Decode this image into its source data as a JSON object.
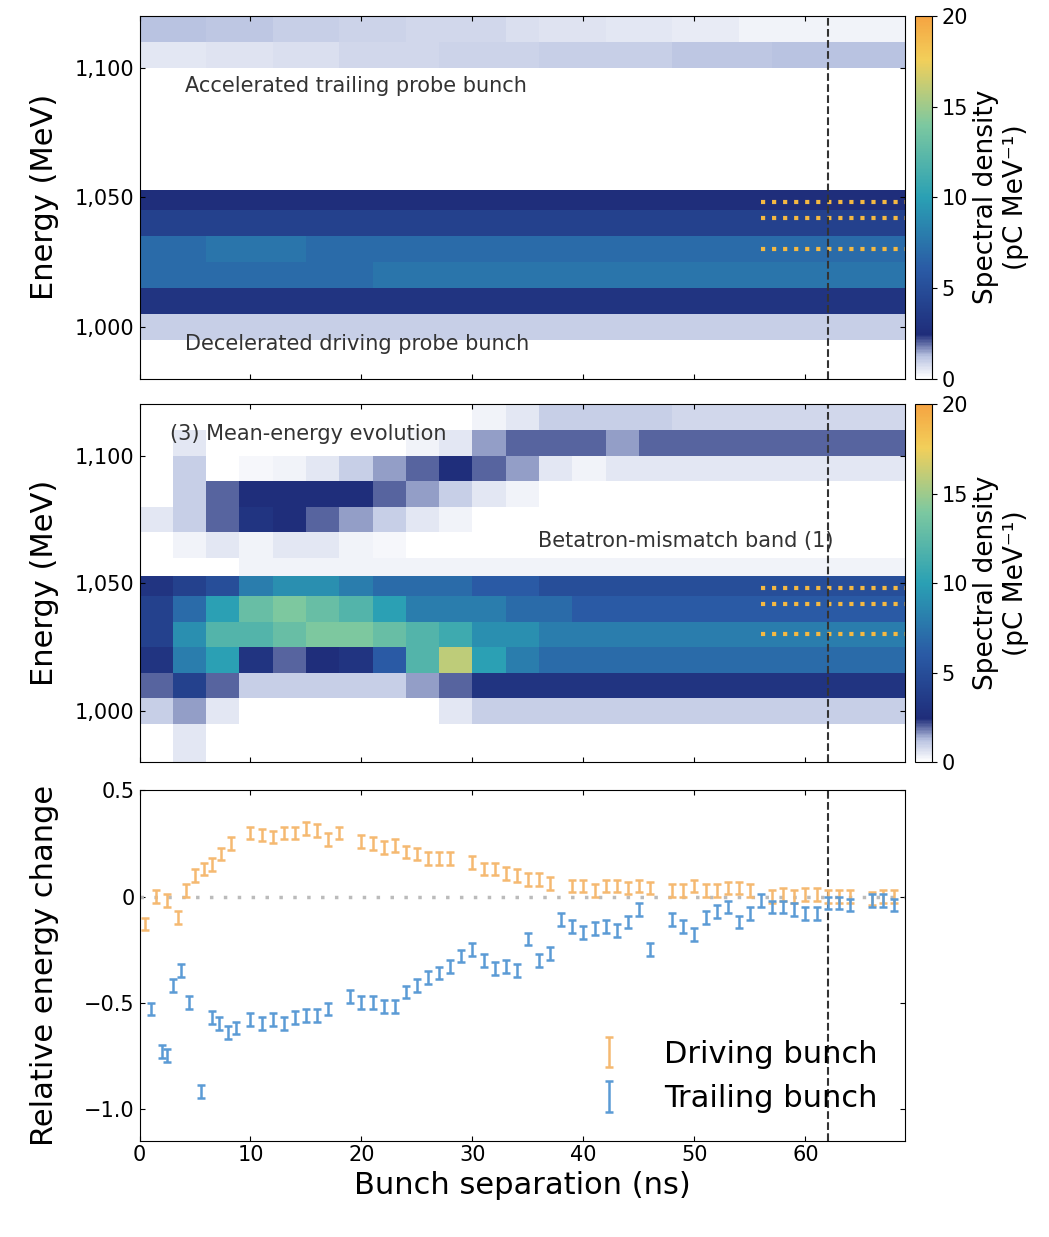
{
  "chart_data": [
    {
      "type": "heatmap",
      "x_edges": [
        0,
        3,
        6,
        9,
        12,
        15,
        18,
        21,
        24,
        27,
        30,
        33,
        36,
        39,
        42,
        45,
        48,
        51,
        54,
        57,
        60,
        63,
        66,
        69
      ],
      "y_edges": [
        980,
        995,
        1005,
        1015,
        1025,
        1035,
        1045,
        1053,
        1060,
        1070,
        1080,
        1090,
        1100,
        1110,
        1120
      ],
      "cells": [
        [
          0,
          1,
          3,
          7,
          7,
          4,
          2.5,
          0,
          0,
          0,
          0,
          0,
          0.5,
          1.2
        ],
        [
          0,
          1,
          3,
          7,
          7,
          4,
          2.5,
          0,
          0,
          0,
          0,
          0,
          0.5,
          1.2
        ],
        [
          0,
          1,
          3,
          7,
          7.5,
          4,
          2.5,
          0,
          0,
          0,
          0,
          0,
          0.6,
          1.1
        ],
        [
          0,
          1,
          3,
          7,
          7.5,
          4,
          2.5,
          0,
          0,
          0,
          0,
          0,
          0.6,
          1.1
        ],
        [
          0,
          1,
          3,
          7,
          7.5,
          4,
          2.5,
          0,
          0,
          0,
          0,
          0,
          0.7,
          1.0
        ],
        [
          0,
          1,
          3,
          7,
          7,
          4,
          2.5,
          0,
          0,
          0,
          0,
          0,
          0.7,
          1.0
        ],
        [
          0,
          1,
          3,
          7,
          7,
          4,
          2.5,
          0,
          0,
          0,
          0,
          0,
          0.8,
          0.9
        ],
        [
          0,
          1,
          3,
          7.5,
          7,
          4,
          2.5,
          0,
          0,
          0,
          0,
          0,
          0.8,
          0.9
        ],
        [
          0,
          1,
          3,
          7.5,
          7,
          4,
          2.5,
          0,
          0,
          0,
          0,
          0,
          0.8,
          0.8
        ],
        [
          0,
          1,
          3,
          7.5,
          7,
          4,
          2.5,
          0,
          0,
          0,
          0,
          0,
          0.9,
          0.8
        ],
        [
          0,
          1,
          3,
          7.5,
          7,
          4,
          2.5,
          0,
          0,
          0,
          0,
          0,
          0.9,
          0.8
        ],
        [
          0,
          1,
          3,
          7.5,
          7,
          4,
          2.5,
          0,
          0,
          0,
          0,
          0,
          0.9,
          0.7
        ],
        [
          0,
          1,
          3,
          7.5,
          7,
          4,
          2.5,
          0,
          0,
          0,
          0,
          0,
          1.0,
          0.6
        ],
        [
          0,
          1,
          3,
          7.5,
          7,
          4,
          2.5,
          0,
          0,
          0,
          0,
          0,
          1.0,
          0.6
        ],
        [
          0,
          1,
          3,
          7.5,
          7,
          4,
          2.5,
          0,
          0,
          0,
          0,
          0,
          1.0,
          0.5
        ],
        [
          0,
          1,
          3,
          7.5,
          7,
          4,
          2.5,
          0,
          0,
          0,
          0,
          0,
          1.0,
          0.5
        ],
        [
          0,
          1,
          3,
          7.5,
          7,
          4,
          2.5,
          0,
          0,
          0,
          0,
          0,
          1.1,
          0.4
        ],
        [
          0,
          1,
          3,
          7.5,
          7,
          4,
          2.5,
          0,
          0,
          0,
          0,
          0,
          1.1,
          0.4
        ],
        [
          0,
          1,
          3,
          7.5,
          7,
          4,
          2.5,
          0,
          0,
          0,
          0,
          0,
          1.1,
          0.3
        ],
        [
          0,
          1,
          3,
          7.5,
          7,
          4,
          2.5,
          0,
          0,
          0,
          0,
          0,
          1.2,
          0.3
        ],
        [
          0,
          1,
          3,
          7.5,
          7,
          4,
          2.5,
          0,
          0,
          0,
          0,
          0,
          1.2,
          0.3
        ],
        [
          0,
          1,
          3,
          7.5,
          7,
          4,
          2.5,
          0,
          0,
          0,
          0,
          0,
          1.2,
          0.3
        ],
        [
          0,
          1,
          3,
          7.5,
          7,
          4,
          2.5,
          0,
          0,
          0,
          0,
          0,
          1.2,
          0.3
        ]
      ],
      "xlim": [
        0,
        69
      ],
      "xticks": [
        0,
        10,
        20,
        30,
        40,
        50,
        60
      ],
      "ylim": [
        980,
        1120
      ],
      "yticks": [
        {
          "value": 1000,
          "label": "1,000"
        },
        {
          "value": 1050,
          "label": "1,050"
        },
        {
          "value": 1100,
          "label": "1,100"
        }
      ],
      "ylabel": "Energy (MeV)",
      "tick_labels": "y",
      "annotations": [
        "Accelerated trailing probe bunch",
        "Decelerated driving probe bunch"
      ],
      "dotted_levels": {
        "x": [
          56,
          69
        ],
        "y": [
          1030,
          1042,
          1048
        ],
        "color": "#f5b942"
      },
      "vline": 62,
      "colorbar": {
        "label": "Spectral density\n(pC MeV⁻¹)",
        "range": [
          0,
          20
        ],
        "ticks": [
          0,
          5,
          10,
          15,
          20
        ]
      }
    },
    {
      "type": "heatmap",
      "x_edges": [
        0,
        3,
        6,
        9,
        12,
        15,
        18,
        21,
        24,
        27,
        30,
        33,
        36,
        39,
        42,
        45,
        48,
        51,
        54,
        57,
        60,
        63,
        66,
        69
      ],
      "y_edges": [
        980,
        995,
        1005,
        1015,
        1025,
        1035,
        1045,
        1053,
        1060,
        1070,
        1080,
        1090,
        1100,
        1110,
        1120
      ],
      "cells": [
        [
          0,
          1,
          2,
          3,
          4,
          4,
          3,
          0,
          0,
          0.5,
          0,
          0,
          0,
          0
        ],
        [
          0.5,
          1.5,
          4,
          8,
          9,
          7,
          4,
          0,
          0.3,
          1,
          1,
          1,
          0.5,
          0
        ],
        [
          0,
          0.5,
          2,
          10,
          12,
          10,
          5,
          0,
          0.5,
          2,
          2,
          0,
          0,
          0
        ],
        [
          0,
          0,
          1,
          3,
          12,
          13,
          8,
          0.3,
          0.3,
          3,
          2.5,
          0.2,
          0,
          0
        ],
        [
          0,
          0,
          1,
          2,
          13,
          14,
          9,
          0.3,
          0.5,
          2.5,
          2.5,
          0.3,
          0,
          0
        ],
        [
          0,
          0,
          1,
          2.5,
          14,
          13,
          9,
          0.3,
          0.5,
          2,
          2.5,
          0.5,
          0,
          0
        ],
        [
          0,
          0,
          1,
          3,
          14,
          12,
          8,
          0.3,
          0.3,
          1.5,
          2.5,
          1,
          0,
          0
        ],
        [
          0,
          0,
          1,
          6,
          13,
          10,
          7,
          0.3,
          0.2,
          1,
          2,
          1.5,
          0,
          0
        ],
        [
          0,
          0,
          1.5,
          12,
          12,
          8,
          7,
          0.3,
          0,
          0.5,
          1.5,
          2,
          0.3,
          0
        ],
        [
          0,
          0.5,
          2,
          16,
          11,
          8,
          7,
          0.3,
          0,
          0.3,
          1,
          2.5,
          0.5,
          0
        ],
        [
          0,
          1,
          3,
          10,
          9,
          8,
          6,
          0.3,
          0,
          0,
          0.5,
          2,
          1.5,
          0.3
        ],
        [
          0,
          1,
          3,
          8,
          9,
          7,
          6,
          0.3,
          0,
          0,
          0.3,
          1.5,
          2,
          0.5
        ],
        [
          0,
          1,
          3,
          7,
          8,
          7,
          5,
          0.3,
          0,
          0,
          0,
          0.5,
          2,
          1
        ],
        [
          0,
          1,
          3,
          7,
          8,
          6,
          5,
          0.3,
          0,
          0,
          0,
          0.3,
          2,
          1
        ],
        [
          0,
          1,
          3,
          7,
          8,
          6,
          5,
          0.3,
          0,
          0,
          0,
          0.5,
          1.5,
          1
        ],
        [
          0,
          1,
          3,
          7,
          8,
          6,
          5,
          0.3,
          0,
          0,
          0,
          0.5,
          2,
          1
        ],
        [
          0,
          1,
          3,
          7,
          8,
          6,
          5,
          0.3,
          0,
          0,
          0,
          0.5,
          2,
          0.8
        ],
        [
          0,
          1,
          3,
          7,
          8,
          6,
          5,
          0.3,
          0,
          0,
          0,
          0.5,
          2,
          0.8
        ],
        [
          0,
          1,
          3,
          7,
          8,
          6,
          5,
          0.3,
          0,
          0,
          0,
          0.5,
          2,
          0.8
        ],
        [
          0,
          1,
          3,
          7,
          8,
          6,
          5,
          0.3,
          0,
          0,
          0,
          0.5,
          2,
          0.8
        ],
        [
          0,
          1,
          3,
          7,
          8,
          6,
          5,
          0.3,
          0,
          0,
          0,
          0.5,
          2,
          0.8
        ],
        [
          0,
          1,
          3,
          7,
          8,
          6,
          5,
          0.3,
          0,
          0,
          0,
          0.5,
          2,
          0.8
        ],
        [
          0,
          1,
          3,
          7,
          8,
          6,
          5,
          0.3,
          0,
          0,
          0,
          0.5,
          2,
          0.8
        ]
      ],
      "xlim": [
        0,
        69
      ],
      "xticks": [
        0,
        10,
        20,
        30,
        40,
        50,
        60
      ],
      "ylim": [
        980,
        1120
      ],
      "yticks": [
        {
          "value": 1000,
          "label": "1,000"
        },
        {
          "value": 1050,
          "label": "1,050"
        },
        {
          "value": 1100,
          "label": "1,100"
        }
      ],
      "ylabel": "Energy (MeV)",
      "tick_labels": "y",
      "annotations": [
        "(3) Mean-energy evolution",
        "Betatron-mismatch band (1)"
      ],
      "dotted_levels": {
        "x": [
          56,
          69
        ],
        "y": [
          1030,
          1042,
          1048
        ],
        "color": "#f5b942"
      },
      "vline": 62,
      "colorbar": {
        "label": "Spectral density\n(pC MeV⁻¹)",
        "range": [
          0,
          20
        ],
        "ticks": [
          0,
          5,
          10,
          15,
          20
        ]
      }
    },
    {
      "type": "errorbar",
      "xlabel": "Bunch separation (ns)",
      "ylabel": "Relative energy change",
      "xlim": [
        0,
        69
      ],
      "xticks": [
        0,
        10,
        20,
        30,
        40,
        50,
        60
      ],
      "ylim": [
        -1.15,
        0.5
      ],
      "yticks": [
        {
          "value": -1.0,
          "label": "−1.0"
        },
        {
          "value": -0.5,
          "label": "−0.5"
        },
        0,
        0.5
      ],
      "baseline": 0,
      "vline": 62,
      "legend": "lower right",
      "series": [
        {
          "name": "Driving bunch",
          "color": "#f5b971",
          "error": 0.03,
          "x": [
            0.5,
            1.5,
            2.5,
            3.5,
            4.2,
            5,
            5.8,
            6.5,
            7.3,
            8.2,
            10,
            11,
            12,
            13,
            14,
            15,
            16,
            17,
            18,
            20,
            21,
            22,
            23,
            24,
            25,
            26,
            27,
            28,
            30,
            31,
            32,
            33,
            34,
            35,
            36,
            37,
            39,
            40,
            41,
            42,
            43,
            44,
            45,
            46,
            48,
            49,
            50,
            51,
            52,
            53,
            54,
            55,
            57,
            58,
            59,
            60,
            61,
            62,
            63,
            64,
            66,
            67,
            68
          ],
          "values": [
            -0.13,
            0,
            -0.02,
            -0.1,
            0.03,
            0.1,
            0.13,
            0.15,
            0.2,
            0.25,
            0.3,
            0.29,
            0.28,
            0.3,
            0.3,
            0.32,
            0.31,
            0.27,
            0.3,
            0.26,
            0.25,
            0.23,
            0.24,
            0.21,
            0.2,
            0.18,
            0.18,
            0.18,
            0.16,
            0.13,
            0.13,
            0.11,
            0.1,
            0.08,
            0.08,
            0.06,
            0.05,
            0.05,
            0.03,
            0.05,
            0.05,
            0.04,
            0.05,
            0.04,
            0.03,
            0.03,
            0.05,
            0.03,
            0.03,
            0.04,
            0.04,
            0.03,
            0,
            0.01,
            0,
            0.01,
            0.01,
            0,
            0,
            0,
            -0.01,
            0,
            0
          ]
        },
        {
          "name": "Trailing bunch",
          "color": "#5b9bd5",
          "error": 0.03,
          "x": [
            1,
            2,
            2.5,
            3,
            3.7,
            4.5,
            5.5,
            6.5,
            7.2,
            8,
            8.7,
            10,
            11,
            12,
            13,
            14,
            15,
            16,
            17,
            19,
            20,
            21,
            22,
            23,
            24,
            25,
            26,
            27,
            28,
            29,
            30,
            31,
            32,
            33,
            34,
            35,
            36,
            37,
            38,
            39,
            40,
            41,
            42,
            43,
            44,
            45,
            46,
            48,
            49,
            50,
            51,
            52,
            53,
            54,
            55,
            56,
            57,
            58,
            59,
            60,
            61,
            62,
            63,
            64,
            66,
            67,
            68
          ],
          "values": [
            -0.53,
            -0.73,
            -0.75,
            -0.42,
            -0.35,
            -0.5,
            -0.92,
            -0.57,
            -0.6,
            -0.64,
            -0.62,
            -0.58,
            -0.6,
            -0.58,
            -0.6,
            -0.57,
            -0.56,
            -0.56,
            -0.53,
            -0.47,
            -0.5,
            -0.5,
            -0.52,
            -0.52,
            -0.45,
            -0.42,
            -0.38,
            -0.36,
            -0.33,
            -0.28,
            -0.25,
            -0.3,
            -0.34,
            -0.33,
            -0.35,
            -0.2,
            -0.3,
            -0.27,
            -0.11,
            -0.14,
            -0.17,
            -0.15,
            -0.14,
            -0.16,
            -0.12,
            -0.06,
            -0.25,
            -0.11,
            -0.14,
            -0.18,
            -0.1,
            -0.07,
            -0.05,
            -0.12,
            -0.08,
            -0.02,
            -0.05,
            -0.05,
            -0.06,
            -0.08,
            -0.08,
            -0.03,
            -0.03,
            -0.04,
            -0.02,
            -0.02,
            -0.04
          ]
        }
      ]
    }
  ]
}
